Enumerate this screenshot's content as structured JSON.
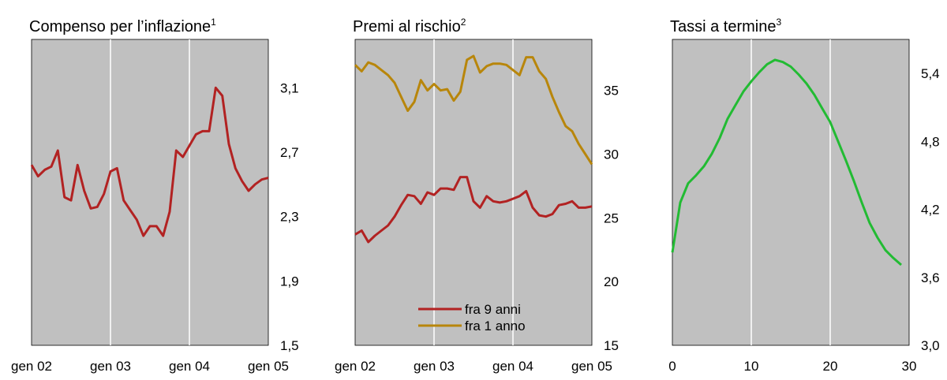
{
  "chart_data": [
    {
      "type": "line",
      "title": "Compenso per l’inflazione",
      "title_superscript": "1",
      "categories": [
        "gen 02",
        null,
        null,
        null,
        null,
        null,
        null,
        null,
        null,
        null,
        null,
        null,
        "gen 03",
        null,
        null,
        null,
        null,
        null,
        null,
        null,
        null,
        null,
        null,
        null,
        "gen 04",
        null,
        null,
        null,
        null,
        null,
        null,
        null,
        null,
        null,
        null,
        null,
        "gen 05"
      ],
      "series": [
        {
          "name": "Compenso per l’inflazione",
          "color": "#b22222",
          "values": [
            2.62,
            2.55,
            2.59,
            2.61,
            2.71,
            2.42,
            2.4,
            2.62,
            2.46,
            2.35,
            2.36,
            2.44,
            2.58,
            2.6,
            2.4,
            2.34,
            2.28,
            2.18,
            2.24,
            2.24,
            2.18,
            2.33,
            2.71,
            2.67,
            2.74,
            2.81,
            2.83,
            2.83,
            3.1,
            3.05,
            2.75,
            2.6,
            2.52,
            2.46,
            2.5,
            2.53,
            2.54
          ]
        }
      ],
      "ylim": [
        1.5,
        3.4
      ],
      "yticks": [
        {
          "value": 1.5,
          "label": "1,5"
        },
        {
          "value": 1.9,
          "label": "1,9"
        },
        {
          "value": 2.3,
          "label": "2,3"
        },
        {
          "value": 2.7,
          "label": "2,7"
        },
        {
          "value": 3.1,
          "label": "3,1"
        }
      ],
      "grid": true
    },
    {
      "type": "line",
      "title": "Premi al rischio",
      "title_superscript": "2",
      "categories": [
        "gen 02",
        null,
        null,
        null,
        null,
        null,
        null,
        null,
        null,
        null,
        null,
        null,
        "gen 03",
        null,
        null,
        null,
        null,
        null,
        null,
        null,
        null,
        null,
        null,
        null,
        "gen 04",
        null,
        null,
        null,
        null,
        null,
        null,
        null,
        null,
        null,
        null,
        null,
        "gen 05"
      ],
      "series": [
        {
          "name": "fra 9 anni",
          "color": "#b22222",
          "values": [
            23.7,
            24.0,
            23.1,
            23.6,
            24.0,
            24.4,
            25.1,
            26.0,
            26.8,
            26.7,
            26.1,
            27.0,
            26.8,
            27.3,
            27.3,
            27.2,
            28.2,
            28.2,
            26.3,
            25.8,
            26.7,
            26.3,
            26.2,
            26.3,
            26.5,
            26.7,
            27.1,
            25.8,
            25.2,
            25.1,
            25.3,
            26.0,
            26.1,
            26.3,
            25.8,
            25.8,
            25.9
          ]
        },
        {
          "name": "fra 1 anno",
          "color": "#b8860b",
          "values": [
            37.0,
            36.5,
            37.2,
            37.0,
            36.6,
            36.2,
            35.6,
            34.5,
            33.4,
            34.1,
            35.8,
            35.0,
            35.5,
            35.0,
            35.1,
            34.2,
            34.9,
            37.4,
            37.7,
            36.4,
            36.9,
            37.1,
            37.1,
            37.0,
            36.6,
            36.2,
            37.6,
            37.6,
            36.5,
            35.9,
            34.5,
            33.3,
            32.2,
            31.8,
            30.8,
            30.0,
            29.2
          ]
        }
      ],
      "ylim": [
        15,
        39
      ],
      "yticks": [
        15,
        20,
        25,
        30,
        35
      ],
      "grid": true,
      "legend": "bottom"
    },
    {
      "type": "line",
      "title": "Tassi a termine",
      "title_superscript": "3",
      "x": [
        0,
        1,
        2,
        3,
        4,
        5,
        6,
        7,
        8,
        9,
        10,
        11,
        12,
        13,
        14,
        15,
        16,
        17,
        18,
        19,
        20,
        21,
        22,
        23,
        24,
        25,
        26,
        27,
        28,
        29
      ],
      "series": [
        {
          "name": "Tassi a termine",
          "color": "#22bb33",
          "values": [
            3.82,
            4.26,
            4.43,
            4.5,
            4.58,
            4.69,
            4.83,
            5.0,
            5.12,
            5.24,
            5.33,
            5.41,
            5.48,
            5.52,
            5.5,
            5.46,
            5.39,
            5.31,
            5.21,
            5.09,
            4.97,
            4.8,
            4.63,
            4.45,
            4.26,
            4.08,
            3.95,
            3.84,
            3.77,
            3.71
          ]
        }
      ],
      "xlim": [
        0,
        30
      ],
      "xticks": [
        0,
        10,
        20,
        30
      ],
      "ylim": [
        3.0,
        5.7
      ],
      "yticks": [
        {
          "value": 3.0,
          "label": "3,0"
        },
        {
          "value": 3.6,
          "label": "3,6"
        },
        {
          "value": 4.2,
          "label": "4,2"
        },
        {
          "value": 4.8,
          "label": "4,8"
        },
        {
          "value": 5.4,
          "label": "5,4"
        }
      ],
      "grid": true
    }
  ]
}
